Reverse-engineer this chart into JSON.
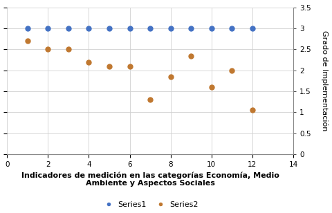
{
  "series1_x": [
    1,
    2,
    3,
    4,
    5,
    6,
    7,
    8,
    9,
    10,
    11,
    12
  ],
  "series1_y": [
    3.0,
    3.0,
    3.0,
    3.0,
    3.0,
    3.0,
    3.0,
    3.0,
    3.0,
    3.0,
    3.0,
    3.0
  ],
  "series2_x": [
    1,
    2,
    3,
    4,
    5,
    6,
    7,
    8,
    9,
    10,
    11,
    12
  ],
  "series2_y": [
    2.7,
    2.5,
    2.5,
    2.2,
    2.1,
    2.1,
    1.3,
    1.85,
    2.35,
    1.6,
    2.0,
    1.05
  ],
  "series1_color": "#4472C4",
  "series2_color": "#C07830",
  "series1_label": "Series1",
  "series2_label": "Series2",
  "xlabel": "Indicadores de medición en las categorías Economía, Medio\nAmbiente y Aspectos Sociales",
  "ylabel": "Grado de Implementación",
  "xlim": [
    0,
    14
  ],
  "ylim": [
    0,
    3.5
  ],
  "xticks": [
    0,
    2,
    4,
    6,
    8,
    10,
    12,
    14
  ],
  "ytick_vals": [
    0,
    0.5,
    1,
    1.5,
    2,
    2.5,
    3,
    3.5
  ],
  "ytick_labels": [
    "0",
    "0.5",
    "1",
    "1.5",
    "2",
    "2.5",
    "3",
    "3.5"
  ],
  "marker_size": 5,
  "background_color": "#ffffff",
  "grid_color": "#d0d0d0",
  "xlabel_fontsize": 8.0,
  "ylabel_fontsize": 8.0,
  "tick_fontsize": 7.5,
  "legend_fontsize": 8.0
}
